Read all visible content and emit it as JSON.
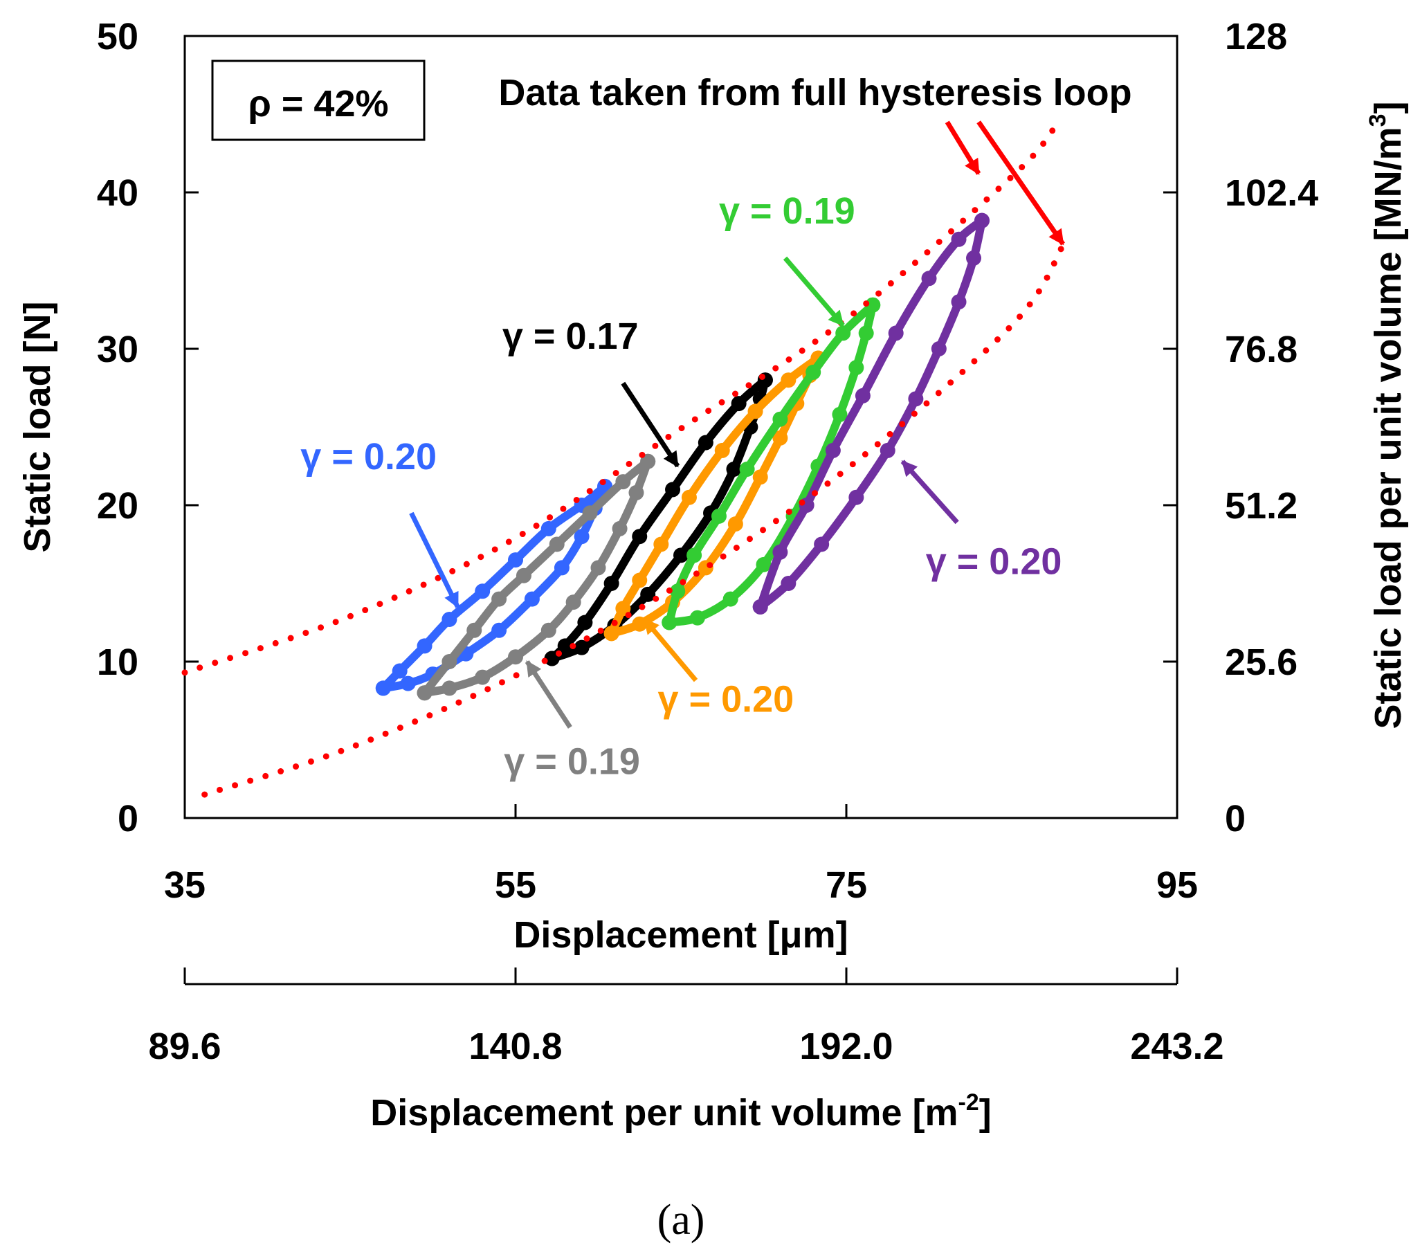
{
  "chart_data": {
    "type": "line",
    "caption": "(a)",
    "inset_label": "ρ = 42%",
    "fit_note": "Data taken from full hysteresis loop",
    "axes": {
      "x": {
        "label": "Displacement  [μm]",
        "range": [
          35,
          95
        ],
        "ticks": [
          "35",
          "55",
          "75",
          "95"
        ]
      },
      "x2": {
        "label": "Displacement per unit volume [m",
        "label_sup": "-2",
        "label_end": "]",
        "range": [
          89.6,
          243.2
        ],
        "ticks": [
          "89.6",
          "140.8",
          "192.0",
          "243.2"
        ]
      },
      "y": {
        "label": "Static load [N]",
        "range": [
          0,
          50
        ],
        "ticks": [
          "0",
          "10",
          "20",
          "30",
          "40",
          "50"
        ]
      },
      "y2": {
        "label": "Static load per unit volume [MN/m",
        "label_sup": "3",
        "label_end": "]",
        "range": [
          0,
          128
        ],
        "ticks": [
          "0",
          "25.6",
          "51.2",
          "76.8",
          "102.4",
          "128"
        ]
      }
    },
    "grid": false,
    "series": [
      {
        "name": "blue loop",
        "label": "γ = 0.20",
        "color": "#3366ff",
        "loading": [
          [
            47.0,
            8.3
          ],
          [
            48.5,
            8.6
          ],
          [
            50.0,
            9.2
          ],
          [
            52.0,
            10.5
          ],
          [
            54.0,
            12.0
          ],
          [
            56.0,
            14.0
          ],
          [
            57.8,
            16.0
          ],
          [
            59.0,
            18.0
          ],
          [
            59.8,
            19.8
          ],
          [
            60.4,
            21.2
          ]
        ],
        "unloading": [
          [
            60.4,
            21.2
          ],
          [
            59.0,
            20.0
          ],
          [
            57.0,
            18.5
          ],
          [
            55.0,
            16.5
          ],
          [
            53.0,
            14.5
          ],
          [
            51.0,
            12.7
          ],
          [
            49.5,
            11.0
          ],
          [
            48.0,
            9.4
          ],
          [
            47.0,
            8.3
          ]
        ]
      },
      {
        "name": "gray loop",
        "label": "γ = 0.19",
        "color": "#808080",
        "loading": [
          [
            49.5,
            8.0
          ],
          [
            51.0,
            8.3
          ],
          [
            53.0,
            9.0
          ],
          [
            55.0,
            10.3
          ],
          [
            57.0,
            12.0
          ],
          [
            58.5,
            13.8
          ],
          [
            60.0,
            16.0
          ],
          [
            61.3,
            18.5
          ],
          [
            62.3,
            20.8
          ],
          [
            63.0,
            22.8
          ]
        ],
        "unloading": [
          [
            63.0,
            22.8
          ],
          [
            61.5,
            21.5
          ],
          [
            59.5,
            19.5
          ],
          [
            57.5,
            17.5
          ],
          [
            55.5,
            15.5
          ],
          [
            54.0,
            14.0
          ],
          [
            52.5,
            12.0
          ],
          [
            51.0,
            10.0
          ],
          [
            49.5,
            8.0
          ]
        ]
      },
      {
        "name": "black loop",
        "label": "γ = 0.17",
        "color": "#000000",
        "loading": [
          [
            57.2,
            10.2
          ],
          [
            59.0,
            10.9
          ],
          [
            61.0,
            12.3
          ],
          [
            63.0,
            14.3
          ],
          [
            65.0,
            16.8
          ],
          [
            66.8,
            19.5
          ],
          [
            68.2,
            22.3
          ],
          [
            69.2,
            25.0
          ],
          [
            69.8,
            26.8
          ],
          [
            70.1,
            28.0
          ]
        ],
        "unloading": [
          [
            70.1,
            28.0
          ],
          [
            68.5,
            26.5
          ],
          [
            66.5,
            24.0
          ],
          [
            64.5,
            21.0
          ],
          [
            62.5,
            18.0
          ],
          [
            60.8,
            15.0
          ],
          [
            59.2,
            12.5
          ],
          [
            58.0,
            11.0
          ],
          [
            57.2,
            10.2
          ]
        ]
      },
      {
        "name": "orange loop",
        "label": "γ = 0.20",
        "color": "#ff9900",
        "loading": [
          [
            60.8,
            11.8
          ],
          [
            62.5,
            12.4
          ],
          [
            64.5,
            13.8
          ],
          [
            66.5,
            16.0
          ],
          [
            68.3,
            18.8
          ],
          [
            69.8,
            21.8
          ],
          [
            71.0,
            24.3
          ],
          [
            72.0,
            26.5
          ],
          [
            72.8,
            28.3
          ],
          [
            73.3,
            29.4
          ]
        ],
        "unloading": [
          [
            73.3,
            29.4
          ],
          [
            71.5,
            28.0
          ],
          [
            69.5,
            26.0
          ],
          [
            67.5,
            23.5
          ],
          [
            65.5,
            20.5
          ],
          [
            63.8,
            17.5
          ],
          [
            62.5,
            15.2
          ],
          [
            61.5,
            13.4
          ],
          [
            60.8,
            11.8
          ]
        ]
      },
      {
        "name": "green loop",
        "label": "γ = 0.19",
        "color": "#33cc33",
        "loading": [
          [
            64.3,
            12.5
          ],
          [
            66.0,
            12.8
          ],
          [
            68.0,
            14.0
          ],
          [
            70.0,
            16.2
          ],
          [
            71.8,
            19.3
          ],
          [
            73.3,
            22.5
          ],
          [
            74.6,
            25.8
          ],
          [
            75.6,
            28.8
          ],
          [
            76.2,
            31.0
          ],
          [
            76.6,
            32.8
          ]
        ],
        "unloading": [
          [
            76.6,
            32.8
          ],
          [
            74.8,
            31.0
          ],
          [
            73.0,
            28.5
          ],
          [
            71.0,
            25.5
          ],
          [
            69.0,
            22.3
          ],
          [
            67.3,
            19.3
          ],
          [
            65.8,
            16.8
          ],
          [
            64.8,
            14.5
          ],
          [
            64.3,
            12.5
          ]
        ]
      },
      {
        "name": "purple loop",
        "label": "γ = 0.20",
        "color": "#7030a0",
        "loading": [
          [
            69.8,
            13.5
          ],
          [
            71.5,
            15.0
          ],
          [
            73.5,
            17.5
          ],
          [
            75.6,
            20.5
          ],
          [
            77.5,
            23.5
          ],
          [
            79.2,
            26.8
          ],
          [
            80.6,
            30.0
          ],
          [
            81.8,
            33.0
          ],
          [
            82.7,
            35.8
          ],
          [
            83.2,
            38.2
          ]
        ],
        "unloading": [
          [
            83.2,
            38.2
          ],
          [
            81.8,
            37.0
          ],
          [
            80.0,
            34.5
          ],
          [
            78.0,
            31.0
          ],
          [
            76.0,
            27.0
          ],
          [
            74.2,
            23.5
          ],
          [
            72.6,
            20.0
          ],
          [
            71.0,
            17.0
          ],
          [
            69.8,
            13.5
          ]
        ]
      }
    ],
    "fit_curves": [
      {
        "name": "upper fit",
        "style": "dotted",
        "color": "#ff0000",
        "points": [
          [
            35,
            9.3
          ],
          [
            45,
            12.9
          ],
          [
            55,
            17.9
          ],
          [
            65,
            24.9
          ],
          [
            75,
            31.9
          ],
          [
            85,
            41.0
          ],
          [
            87.5,
            44.0
          ]
        ]
      },
      {
        "name": "lower fit",
        "style": "dotted",
        "color": "#ff0000",
        "points": [
          [
            36.2,
            1.5
          ],
          [
            45,
            4.5
          ],
          [
            55,
            9.1
          ],
          [
            65,
            15.0
          ],
          [
            75,
            22.3
          ],
          [
            85,
            31.5
          ],
          [
            88.1,
            36.6
          ]
        ]
      }
    ],
    "annotations": [
      {
        "text": "γ = 0.20",
        "color": "#3366ff",
        "text_at": [
          42.0,
          22.3
        ],
        "arrow_from": [
          48.7,
          19.5
        ],
        "arrow_to": [
          51.5,
          13.5
        ]
      },
      {
        "text": "γ = 0.19",
        "color": "#808080",
        "text_at": [
          54.3,
          2.8
        ],
        "arrow_from": [
          58.3,
          5.8
        ],
        "arrow_to": [
          55.7,
          10.0
        ]
      },
      {
        "text": "γ = 0.17",
        "color": "#000000",
        "text_at": [
          54.2,
          30.0
        ],
        "arrow_from": [
          61.5,
          27.8
        ],
        "arrow_to": [
          64.8,
          22.5
        ]
      },
      {
        "text": "γ = 0.20",
        "color": "#ff9900",
        "text_at": [
          63.6,
          6.8
        ],
        "arrow_from": [
          65.9,
          8.8
        ],
        "arrow_to": [
          62.8,
          12.7
        ]
      },
      {
        "text": "γ = 0.19",
        "color": "#33cc33",
        "text_at": [
          67.3,
          38.0
        ],
        "arrow_from": [
          71.3,
          35.8
        ],
        "arrow_to": [
          74.8,
          31.5
        ]
      },
      {
        "text": "γ = 0.20",
        "color": "#7030a0",
        "text_at": [
          79.8,
          15.6
        ],
        "arrow_from": [
          81.7,
          18.9
        ],
        "arrow_to": [
          78.4,
          22.8
        ]
      }
    ],
    "fit_arrows": [
      {
        "color": "#ff0000",
        "arrow_from": [
          81.1,
          44.5
        ],
        "arrow_to": [
          83.0,
          41.2
        ]
      },
      {
        "color": "#ff0000",
        "arrow_from": [
          83.0,
          44.5
        ],
        "arrow_to": [
          88.1,
          36.7
        ]
      }
    ]
  }
}
